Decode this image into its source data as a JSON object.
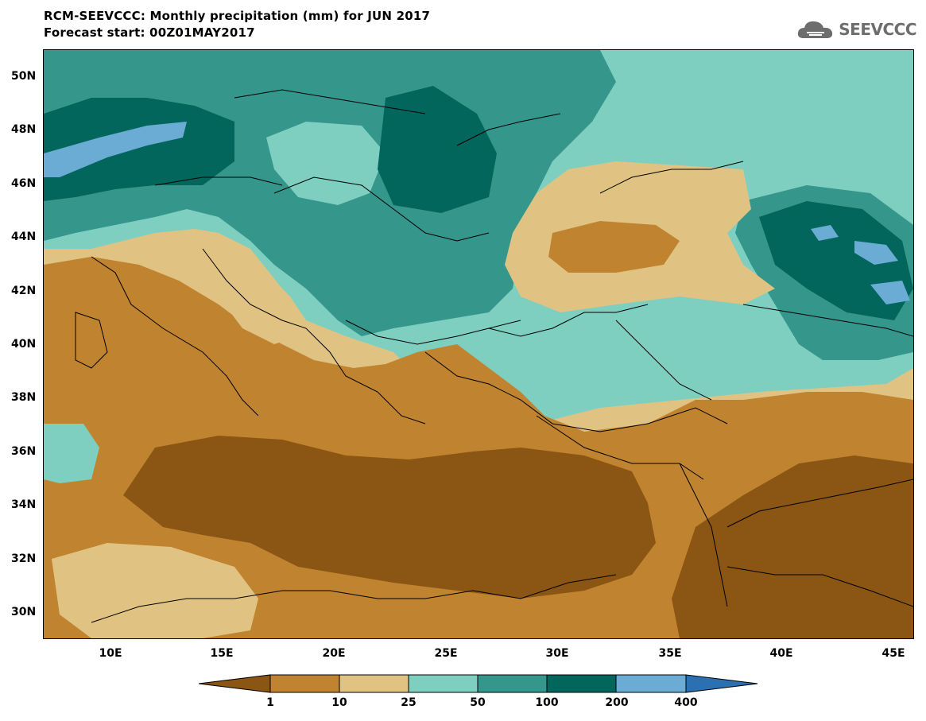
{
  "title": {
    "line1": "RCM-SEEVCCC: Monthly precipitation (mm) for JUN 2017",
    "line2": "Forecast start: 00Z01MAY2017"
  },
  "logo": {
    "text": "SEEVCCC",
    "icon": "cloud-icon"
  },
  "map": {
    "lat_labels": [
      "50N",
      "48N",
      "46N",
      "44N",
      "42N",
      "40N",
      "38N",
      "36N",
      "34N",
      "32N",
      "30N"
    ],
    "lon_labels": [
      "10E",
      "15E",
      "20E",
      "25E",
      "30E",
      "35E",
      "40E",
      "45E"
    ]
  },
  "colorbar": {
    "labels": [
      "1",
      "10",
      "25",
      "50",
      "100",
      "200",
      "400"
    ],
    "colors": [
      "#8b5514",
      "#c0832f",
      "#e0c383",
      "#7ecfc0",
      "#35968c",
      "#02665c",
      "#6aacd4",
      "#2b70b0"
    ]
  }
}
